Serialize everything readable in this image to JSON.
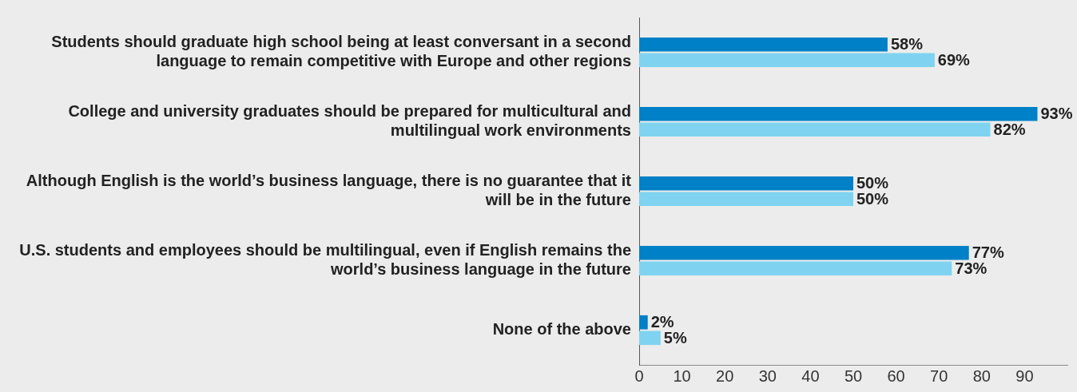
{
  "chart_data": {
    "type": "bar",
    "orientation": "horizontal",
    "categories": [
      "Students should graduate high school being at least conversant in a second language to remain competitive with Europe and other regions",
      "College and university graduates should be prepared for multicultural and multilingual work environments",
      "Although English is the world’s business language, there is no guarantee that it will be in the future",
      "U.S. students and employees should be multilingual, even if English remains the world’s business language in the future",
      "None of the above"
    ],
    "series": [
      {
        "color": "#0080c6",
        "values": [
          58,
          93,
          50,
          77,
          2
        ],
        "value_labels": [
          "58%",
          "93%",
          "50%",
          "77%",
          "2%"
        ]
      },
      {
        "color": "#7fd3f0",
        "values": [
          69,
          82,
          50,
          73,
          5
        ],
        "value_labels": [
          "69%",
          "82%",
          "50%",
          "73%",
          "5%"
        ]
      }
    ],
    "xlim": [
      0,
      100
    ],
    "xticks": [
      0,
      10,
      20,
      30,
      40,
      50,
      60,
      70,
      80,
      90
    ],
    "grid": false,
    "legend": false
  }
}
